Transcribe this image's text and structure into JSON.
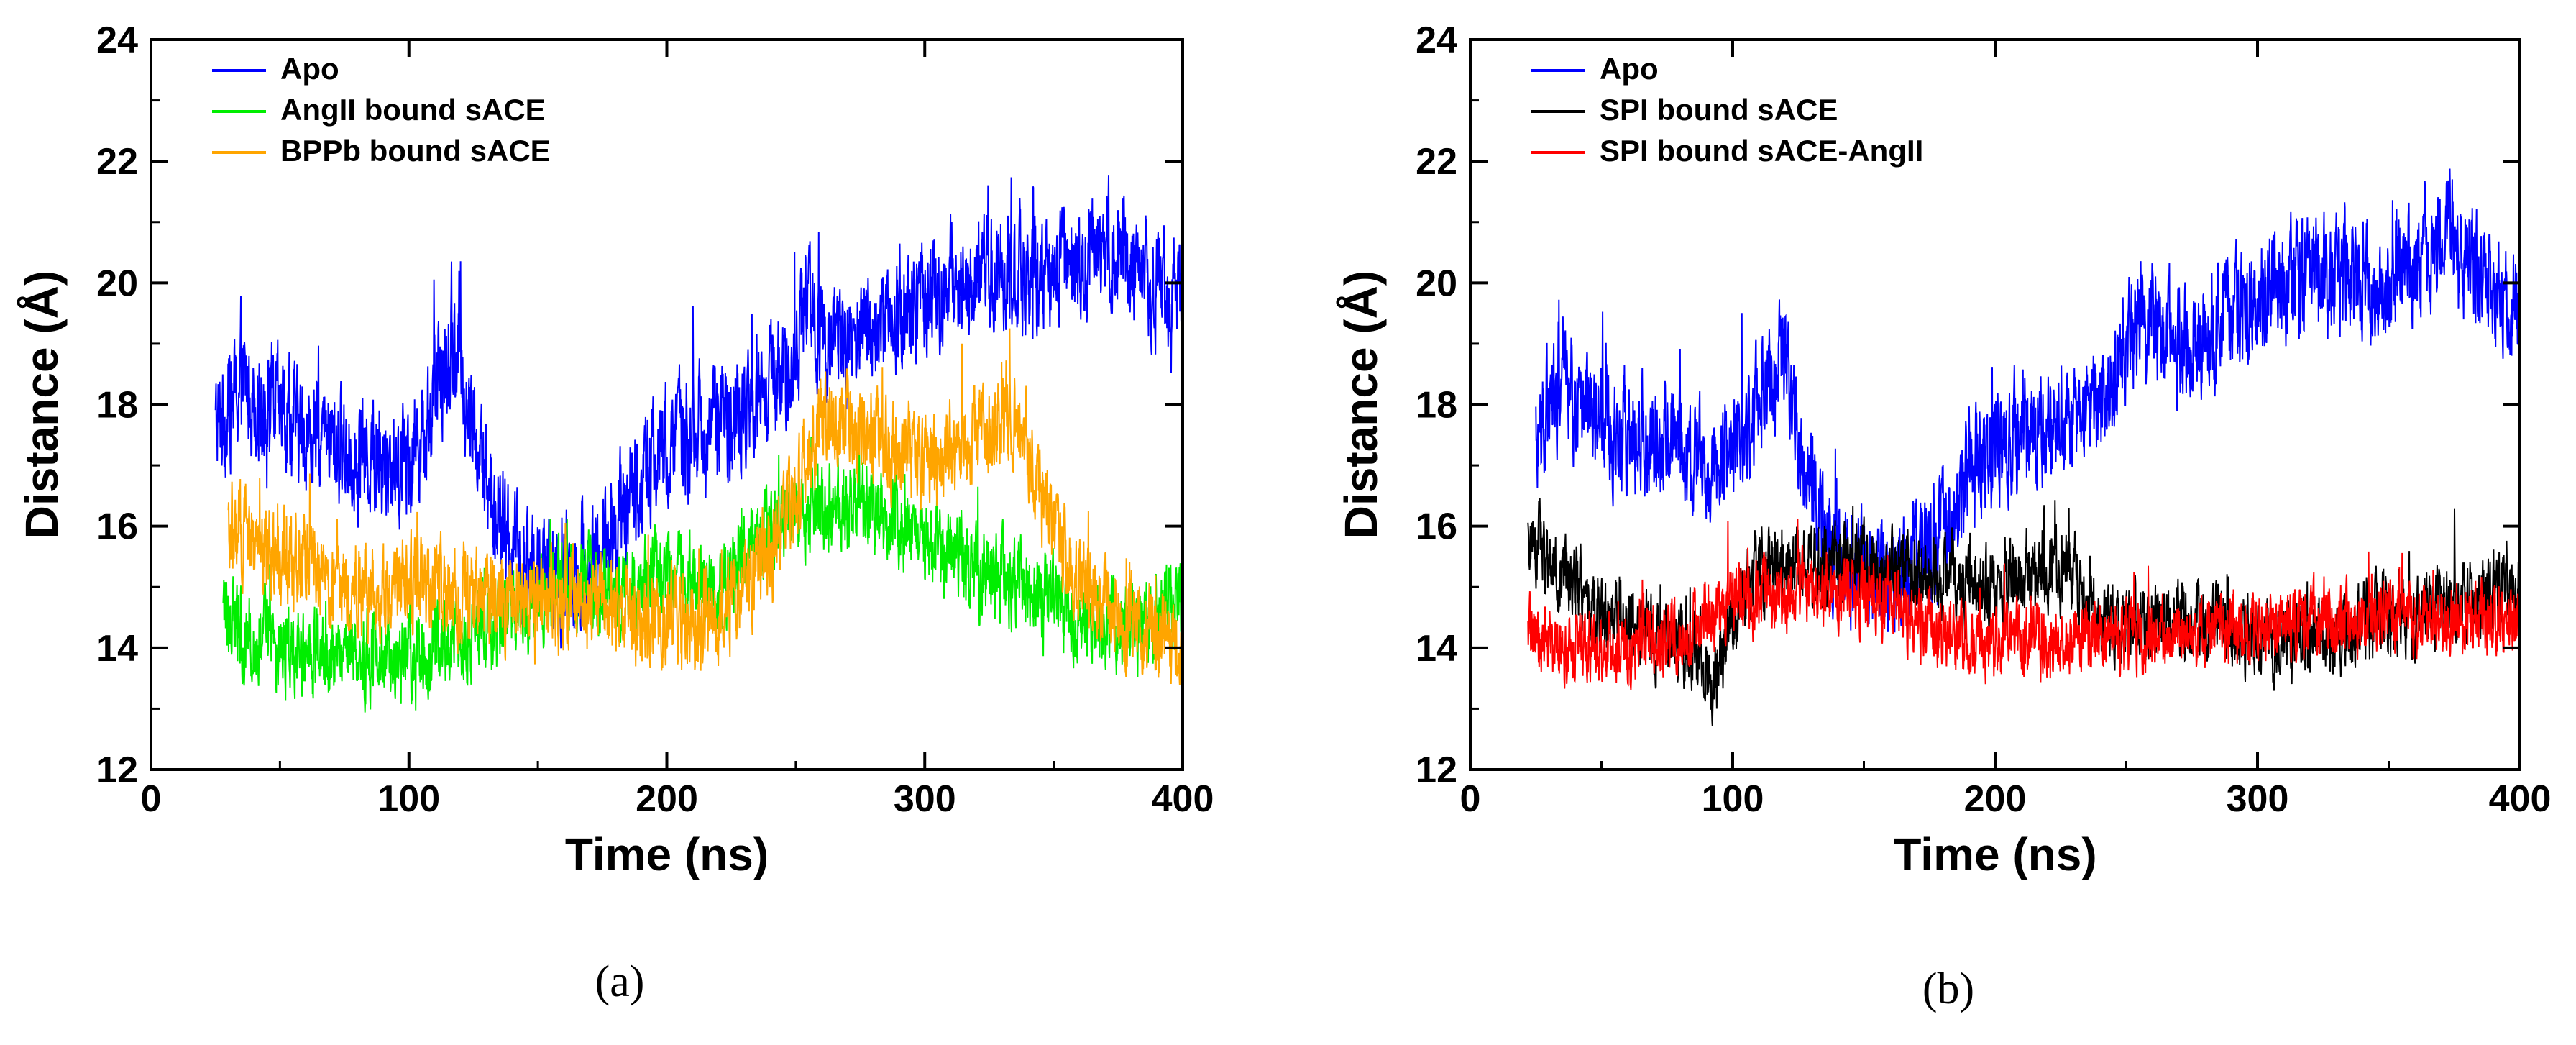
{
  "colors": {
    "apo": "#0000ff",
    "angii": "#00ee00",
    "bppb": "#ffa500",
    "spi_sace": "#000000",
    "spi_sace_angii": "#ff0000"
  },
  "chart_data": [
    {
      "type": "line",
      "panel_label": "(a)",
      "xlabel": "Time (ns)",
      "ylabel": "Distance (Å)",
      "xlim": [
        0,
        400
      ],
      "ylim": [
        12,
        24
      ],
      "xticks": [
        0,
        100,
        200,
        300,
        400
      ],
      "yticks": [
        12,
        14,
        16,
        18,
        20,
        22,
        24
      ],
      "legend_position": "top-left",
      "series": [
        {
          "name": "Apo",
          "color_key": "apo",
          "x_start": 25,
          "x_end": 400,
          "anchors": [
            [
              25,
              17.6
            ],
            [
              35,
              18.3
            ],
            [
              45,
              18.0
            ],
            [
              60,
              17.5
            ],
            [
              80,
              17.2
            ],
            [
              95,
              17.0
            ],
            [
              105,
              17.5
            ],
            [
              118,
              19.0
            ],
            [
              125,
              17.5
            ],
            [
              135,
              16.0
            ],
            [
              145,
              15.3
            ],
            [
              160,
              15.2
            ],
            [
              175,
              15.6
            ],
            [
              190,
              16.8
            ],
            [
              200,
              17.3
            ],
            [
              215,
              17.6
            ],
            [
              230,
              17.8
            ],
            [
              245,
              18.5
            ],
            [
              255,
              19.5
            ],
            [
              270,
              19.0
            ],
            [
              290,
              19.5
            ],
            [
              310,
              20.0
            ],
            [
              330,
              20.2
            ],
            [
              350,
              20.0
            ],
            [
              370,
              20.8
            ],
            [
              385,
              20.2
            ],
            [
              400,
              19.6
            ]
          ],
          "noise": 1.6
        },
        {
          "name": "AngII bound sACE",
          "color_key": "angii",
          "x_start": 28,
          "x_end": 400,
          "anchors": [
            [
              28,
              14.5
            ],
            [
              50,
              14.0
            ],
            [
              80,
              13.9
            ],
            [
              110,
              14.0
            ],
            [
              140,
              14.6
            ],
            [
              160,
              15.0
            ],
            [
              180,
              15.0
            ],
            [
              200,
              15.2
            ],
            [
              220,
              15.0
            ],
            [
              240,
              16.0
            ],
            [
              260,
              16.4
            ],
            [
              280,
              16.3
            ],
            [
              300,
              15.8
            ],
            [
              320,
              15.3
            ],
            [
              340,
              15.0
            ],
            [
              360,
              14.5
            ],
            [
              380,
              14.3
            ],
            [
              400,
              14.8
            ]
          ],
          "noise": 1.2
        },
        {
          "name": "BPPb bound sACE",
          "color_key": "bppb",
          "x_start": 30,
          "x_end": 400,
          "anchors": [
            [
              30,
              16.0
            ],
            [
              50,
              15.5
            ],
            [
              80,
              15.0
            ],
            [
              110,
              15.0
            ],
            [
              140,
              14.8
            ],
            [
              170,
              14.8
            ],
            [
              190,
              14.5
            ],
            [
              210,
              14.3
            ],
            [
              230,
              15.0
            ],
            [
              245,
              16.0
            ],
            [
              260,
              17.8
            ],
            [
              280,
              17.5
            ],
            [
              300,
              17.0
            ],
            [
              320,
              17.5
            ],
            [
              335,
              17.8
            ],
            [
              345,
              16.5
            ],
            [
              360,
              15.0
            ],
            [
              380,
              14.4
            ],
            [
              400,
              14.0
            ]
          ],
          "noise": 1.3
        }
      ],
      "legend": [
        "Apo",
        "AngII bound sACE",
        "BPPb bound sACE"
      ]
    },
    {
      "type": "line",
      "panel_label": "(b)",
      "xlabel": "Time (ns)",
      "ylabel": "Distance (Å)",
      "xlim": [
        0,
        400
      ],
      "ylim": [
        12,
        24
      ],
      "xticks": [
        0,
        100,
        200,
        300,
        400
      ],
      "yticks": [
        12,
        14,
        16,
        18,
        20,
        22,
        24
      ],
      "legend_position": "top-left",
      "series": [
        {
          "name": "Apo",
          "color_key": "apo",
          "x_start": 25,
          "x_end": 400,
          "anchors": [
            [
              25,
              17.6
            ],
            [
              35,
              18.3
            ],
            [
              45,
              18.0
            ],
            [
              60,
              17.5
            ],
            [
              80,
              17.2
            ],
            [
              95,
              17.0
            ],
            [
              105,
              17.5
            ],
            [
              118,
              19.0
            ],
            [
              125,
              17.5
            ],
            [
              135,
              16.0
            ],
            [
              145,
              15.3
            ],
            [
              160,
              15.2
            ],
            [
              175,
              15.6
            ],
            [
              190,
              16.8
            ],
            [
              200,
              17.3
            ],
            [
              215,
              17.6
            ],
            [
              230,
              17.8
            ],
            [
              245,
              18.5
            ],
            [
              255,
              19.5
            ],
            [
              270,
              19.0
            ],
            [
              290,
              19.5
            ],
            [
              310,
              20.0
            ],
            [
              330,
              20.2
            ],
            [
              350,
              20.0
            ],
            [
              370,
              20.8
            ],
            [
              385,
              20.2
            ],
            [
              400,
              19.6
            ]
          ],
          "noise": 1.6
        },
        {
          "name": "SPI bound sACE",
          "color_key": "spi_sace",
          "x_start": 22,
          "x_end": 400,
          "anchors": [
            [
              22,
              15.8
            ],
            [
              35,
              15.2
            ],
            [
              50,
              14.6
            ],
            [
              70,
              14.3
            ],
            [
              85,
              13.9
            ],
            [
              92,
              13.3
            ],
            [
              100,
              14.5
            ],
            [
              110,
              15.3
            ],
            [
              130,
              15.3
            ],
            [
              150,
              15.4
            ],
            [
              170,
              15.2
            ],
            [
              190,
              15.0
            ],
            [
              210,
              15.2
            ],
            [
              230,
              15.3
            ],
            [
              240,
              14.3
            ],
            [
              260,
              14.4
            ],
            [
              280,
              14.4
            ],
            [
              300,
              14.1
            ],
            [
              320,
              14.2
            ],
            [
              340,
              14.4
            ],
            [
              360,
              14.6
            ],
            [
              380,
              14.8
            ],
            [
              400,
              15.0
            ]
          ],
          "noise": 1.1
        },
        {
          "name": "SPI bound sACE-AngII",
          "color_key": "spi_sace_angii",
          "x_start": 22,
          "x_end": 400,
          "anchors": [
            [
              22,
              14.2
            ],
            [
              40,
              14.0
            ],
            [
              60,
              14.0
            ],
            [
              80,
              14.2
            ],
            [
              100,
              14.8
            ],
            [
              120,
              14.9
            ],
            [
              140,
              15.0
            ],
            [
              160,
              14.8
            ],
            [
              180,
              14.2
            ],
            [
              200,
              14.0
            ],
            [
              220,
              14.1
            ],
            [
              250,
              14.2
            ],
            [
              280,
              14.3
            ],
            [
              300,
              14.3
            ],
            [
              320,
              14.4
            ],
            [
              340,
              14.5
            ],
            [
              360,
              14.5
            ],
            [
              380,
              14.4
            ],
            [
              400,
              14.5
            ]
          ],
          "noise": 1.0
        }
      ],
      "legend": [
        "Apo",
        "SPI bound sACE",
        "SPI bound sACE-AngII"
      ]
    }
  ]
}
